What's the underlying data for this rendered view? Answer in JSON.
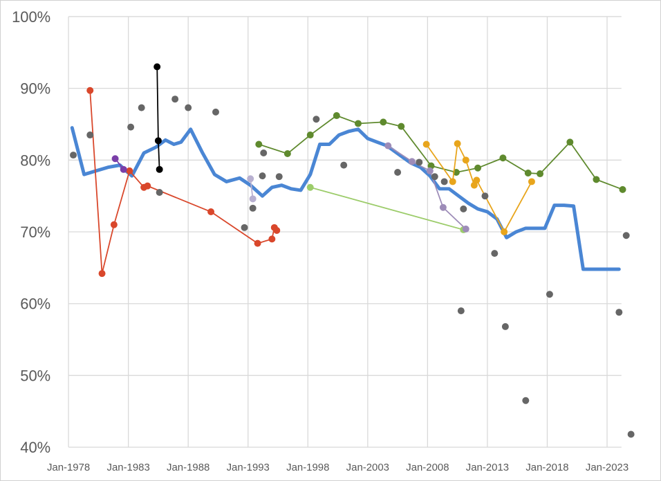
{
  "chart_data": {
    "type": "line",
    "title": "",
    "xlabel": "",
    "ylabel": "",
    "xlim": [
      1978.0,
      2024.2
    ],
    "ylim": [
      40,
      100
    ],
    "y_ticks": [
      40,
      50,
      60,
      70,
      80,
      90,
      100
    ],
    "y_tick_labels": [
      "40%",
      "50%",
      "60%",
      "70%",
      "80%",
      "90%",
      "100%"
    ],
    "x_ticks": [
      1978,
      1983,
      1988,
      1993,
      1998,
      2003,
      2008,
      2013,
      2018,
      2023
    ],
    "x_tick_labels": [
      "Jan-1978",
      "Jan-1983",
      "Jan-1988",
      "Jan-1993",
      "Jan-1998",
      "Jan-2003",
      "Jan-2008",
      "Jan-2013",
      "Jan-2018",
      "Jan-2023"
    ],
    "grid": true,
    "legend": "none",
    "colors": {
      "gridline": "#d9d9d9",
      "axis_text": "#595959",
      "blue_line": "#4a86d4",
      "red": "#d9472b",
      "black": "#000000",
      "purple": "#7a3ea8",
      "lavender": "#b8b0d0",
      "green": "#5f8a2e",
      "light_green": "#9ccc6a",
      "muted_purple": "#9d8cb8",
      "orange": "#e8a51c",
      "gray_points": "#666666"
    },
    "series": [
      {
        "style": "thick-line",
        "color": "#4a86d4",
        "x": [
          1978.3,
          1979.3,
          1980.3,
          1981.3,
          1982.3,
          1982.8,
          1983.3,
          1984.3,
          1985.3,
          1986.1,
          1986.8,
          1987.4,
          1988.2,
          1989.2,
          1990.2,
          1991.2,
          1992.3,
          1993.2,
          1994.2,
          1995.0,
          1995.8,
          1996.6,
          1997.4,
          1998.2,
          1999.0,
          1999.8,
          2000.6,
          2001.4,
          2002.2,
          2003.0,
          2003.8,
          2004.6,
          2005.6,
          2006.6,
          2007.4,
          2008.2,
          2009.0,
          2009.8,
          2010.6,
          2011.4,
          2012.2,
          2013.0,
          2013.8,
          2014.6,
          2015.4,
          2016.2,
          2017.0,
          2017.8,
          2018.6,
          2019.4,
          2020.2,
          2021.0,
          2021.8,
          2022.6,
          2023.4,
          2024.0
        ],
        "y": [
          84.5,
          78.0,
          78.5,
          79.0,
          79.3,
          78.5,
          77.8,
          81.0,
          81.8,
          82.8,
          82.2,
          82.5,
          84.3,
          81.0,
          78.0,
          77.0,
          77.5,
          76.5,
          75.0,
          76.2,
          76.5,
          76.0,
          75.8,
          78.0,
          82.2,
          82.2,
          83.5,
          84.0,
          84.3,
          83.0,
          82.5,
          82.0,
          80.8,
          79.6,
          79.0,
          77.8,
          76.0,
          76.0,
          75.0,
          74.0,
          73.2,
          72.8,
          71.8,
          69.2,
          70.0,
          70.5,
          70.5,
          70.5,
          73.7,
          73.7,
          73.6,
          64.8,
          64.8,
          64.8,
          64.8,
          64.8
        ]
      },
      {
        "style": "line-markers",
        "color": "#d9472b",
        "x": [
          1979.8,
          1980.8,
          1981.8,
          1983.1,
          1984.3,
          1984.6,
          1989.9,
          1993.8,
          1995.0,
          1995.2,
          1995.4
        ],
        "y": [
          89.7,
          64.2,
          71.0,
          78.5,
          76.2,
          76.4,
          72.8,
          68.4,
          69.0,
          70.6,
          70.2
        ]
      },
      {
        "style": "line-markers",
        "color": "#000000",
        "x": [
          1985.4,
          1985.5,
          1985.6
        ],
        "y": [
          93.0,
          82.7,
          78.7
        ]
      },
      {
        "style": "line-markers",
        "color": "#7a3ea8",
        "x": [
          1981.9,
          1982.6
        ],
        "y": [
          80.2,
          78.7
        ]
      },
      {
        "style": "line-markers",
        "color": "#b8b0d0",
        "x": [
          1993.2,
          1993.4
        ],
        "y": [
          77.4,
          74.6
        ]
      },
      {
        "style": "line-markers",
        "color": "#5f8a2e",
        "x": [
          1993.9,
          1996.3,
          1998.2,
          2000.4,
          2002.2,
          2004.3,
          2005.8,
          2008.3,
          2010.4,
          2012.2,
          2014.3,
          2016.4,
          2017.4,
          2019.9,
          2022.1,
          2024.3
        ],
        "y": [
          82.2,
          80.9,
          83.5,
          86.2,
          85.1,
          85.3,
          84.7,
          79.2,
          78.3,
          78.9,
          80.3,
          78.2,
          78.1,
          82.5,
          77.3,
          75.9
        ]
      },
      {
        "style": "line-markers",
        "color": "#9ccc6a",
        "x": [
          1998.2,
          2011.0
        ],
        "y": [
          76.2,
          70.3
        ]
      },
      {
        "style": "line-markers",
        "color": "#9d8cb8",
        "x": [
          2004.7,
          2006.7,
          2008.2,
          2009.3,
          2011.2
        ],
        "y": [
          82.0,
          79.8,
          78.5,
          73.4,
          70.4
        ]
      },
      {
        "style": "line-markers",
        "color": "#e8a51c",
        "x": [
          2007.9,
          2010.1,
          2010.5,
          2011.2,
          2011.9,
          2012.1,
          2014.4,
          2016.7
        ],
        "y": [
          82.2,
          77.0,
          82.3,
          80.0,
          76.5,
          77.2,
          70.0,
          77.0
        ]
      },
      {
        "style": "markers",
        "color": "#666666",
        "x": [
          1978.4,
          1979.8,
          1983.2,
          1984.1,
          1985.6,
          1986.9,
          1988.0,
          1990.3,
          1992.7,
          1993.4,
          1994.2,
          1994.3,
          1995.6,
          1998.7,
          2001.0,
          2005.5,
          2007.3,
          2008.6,
          2009.4,
          2010.8,
          2011.0,
          2012.8,
          2013.6,
          2014.5,
          2016.2,
          2018.2,
          2024.0,
          2024.6,
          2025.0
        ],
        "y": [
          80.7,
          83.5,
          84.6,
          87.3,
          75.5,
          88.5,
          87.3,
          86.7,
          70.6,
          73.3,
          77.8,
          81.0,
          77.7,
          85.7,
          79.3,
          78.3,
          79.7,
          77.7,
          77.0,
          59.0,
          73.2,
          75.0,
          67.0,
          56.8,
          46.5,
          61.3,
          58.8,
          69.5,
          41.8
        ]
      }
    ]
  }
}
